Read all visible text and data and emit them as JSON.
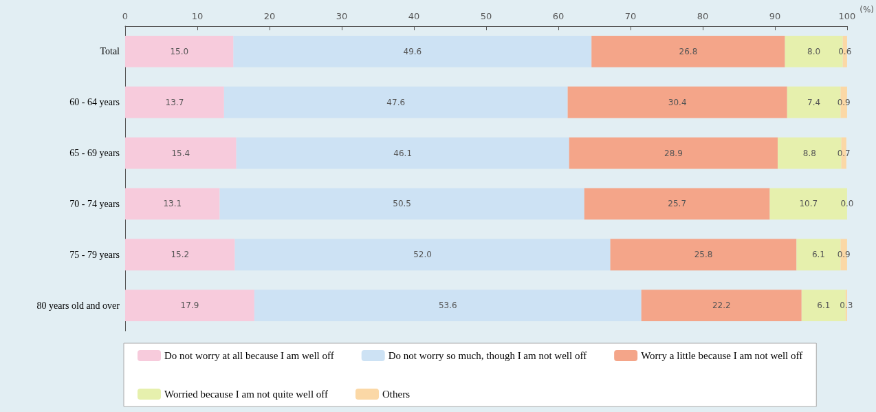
{
  "chart_data": {
    "type": "bar",
    "orientation": "horizontal",
    "stacked": true,
    "xlabel": "(%)",
    "categories": [
      "Total",
      "60 - 64 years",
      "65 - 69 years",
      "70 - 74 years",
      "75 - 79 years",
      "80 years old and over"
    ],
    "xlim": [
      0,
      100
    ],
    "xticks": [
      0,
      10,
      20,
      30,
      40,
      50,
      60,
      70,
      80,
      90,
      100
    ],
    "grid": false,
    "legend": "bottom",
    "series": [
      {
        "name": "Do not worry at all because I am well off",
        "color": "#f7cbdc",
        "values": [
          15.0,
          13.7,
          15.4,
          13.1,
          15.2,
          17.9
        ],
        "value_labels": [
          "15.0",
          "13.7",
          "15.4",
          "13.1",
          "15.2",
          "17.9"
        ]
      },
      {
        "name": "Do not worry so much, though I am not well off",
        "color": "#cde2f4",
        "values": [
          49.6,
          47.6,
          46.1,
          50.5,
          52.0,
          53.6
        ],
        "value_labels": [
          "49.6",
          "47.6",
          "46.1",
          "50.5",
          "52.0",
          "53.6"
        ]
      },
      {
        "name": "Worry a little because I am not well off",
        "color": "#f4a589",
        "values": [
          26.8,
          30.4,
          28.9,
          25.7,
          25.8,
          22.2
        ],
        "value_labels": [
          "26.8",
          "30.4",
          "28.9",
          "25.7",
          "25.8",
          "22.2"
        ]
      },
      {
        "name": "Worried because I am not quite well off",
        "color": "#e6f0ad",
        "values": [
          8.0,
          7.4,
          8.8,
          10.7,
          6.1,
          6.1
        ],
        "value_labels": [
          "8.0",
          "7.4",
          "8.8",
          "10.7",
          "6.1",
          "6.1"
        ]
      },
      {
        "name": "Others",
        "color": "#fbd8a6",
        "values": [
          0.6,
          0.9,
          0.7,
          0.0,
          0.9,
          0.3
        ],
        "value_labels": [
          "0.6",
          "0.9",
          "0.7",
          "0.0",
          "0.9",
          "0.3"
        ]
      }
    ]
  }
}
